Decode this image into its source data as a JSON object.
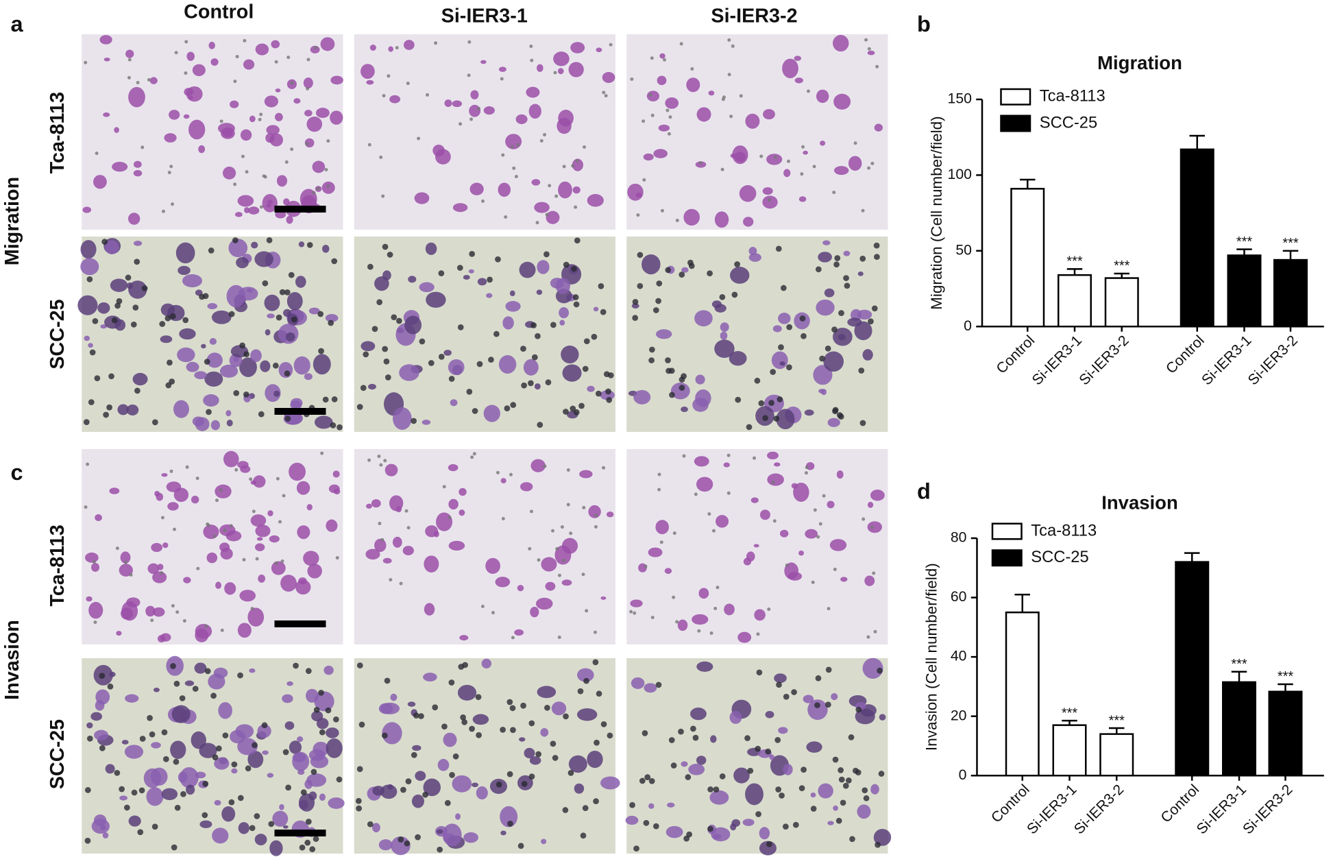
{
  "panel_labels": [
    "a",
    "b",
    "c",
    "d"
  ],
  "columns": [
    "Control",
    "Si-IER3-1",
    "Si-IER3-2"
  ],
  "sections": [
    "Migration",
    "Invasion"
  ],
  "rows": [
    "Tca-8113",
    "SCC-25"
  ],
  "chart_data": [
    {
      "type": "bar",
      "title": "Migration",
      "ylabel": "Migration (Cell number/field)",
      "categories": [
        "Control",
        "Si-IER3-1",
        "Si-IER3-2",
        "Control",
        "Si-IER3-1",
        "Si-IER3-2"
      ],
      "series": [
        {
          "name": "Tca-8113",
          "color": "#ffffff",
          "values": [
            91,
            34,
            32,
            null,
            null,
            null
          ],
          "errors": [
            6,
            4,
            3,
            null,
            null,
            null
          ],
          "significance": [
            null,
            "***",
            "***",
            null,
            null,
            null
          ]
        },
        {
          "name": "SCC-25",
          "color": "#000000",
          "values": [
            null,
            null,
            null,
            117,
            47,
            44
          ],
          "errors": [
            null,
            null,
            null,
            9,
            4,
            6
          ],
          "significance": [
            null,
            null,
            null,
            null,
            "***",
            "***"
          ]
        }
      ],
      "ylim": [
        0,
        150
      ],
      "yticks": [
        0,
        50,
        100,
        150
      ],
      "legend": "upper left"
    },
    {
      "type": "bar",
      "title": "Invasion",
      "ylabel": "Invasion (Cell number/field)",
      "categories": [
        "Control",
        "Si-IER3-1",
        "Si-IER3-2",
        "Control",
        "Si-IER3-1",
        "Si-IER3-2"
      ],
      "series": [
        {
          "name": "Tca-8113",
          "color": "#ffffff",
          "values": [
            55,
            17,
            14,
            null,
            null,
            null
          ],
          "errors": [
            6,
            1.5,
            2,
            null,
            null,
            null
          ],
          "significance": [
            null,
            "***",
            "***",
            null,
            null,
            null
          ]
        },
        {
          "name": "SCC-25",
          "color": "#000000",
          "values": [
            null,
            null,
            null,
            72,
            31.5,
            28.3
          ],
          "errors": [
            null,
            null,
            null,
            3,
            3.5,
            2.5
          ],
          "significance": [
            null,
            null,
            null,
            null,
            "***",
            "***"
          ]
        }
      ],
      "ylim": [
        0,
        80
      ],
      "yticks": [
        0,
        20,
        40,
        60,
        80
      ],
      "legend": "upper left"
    }
  ]
}
